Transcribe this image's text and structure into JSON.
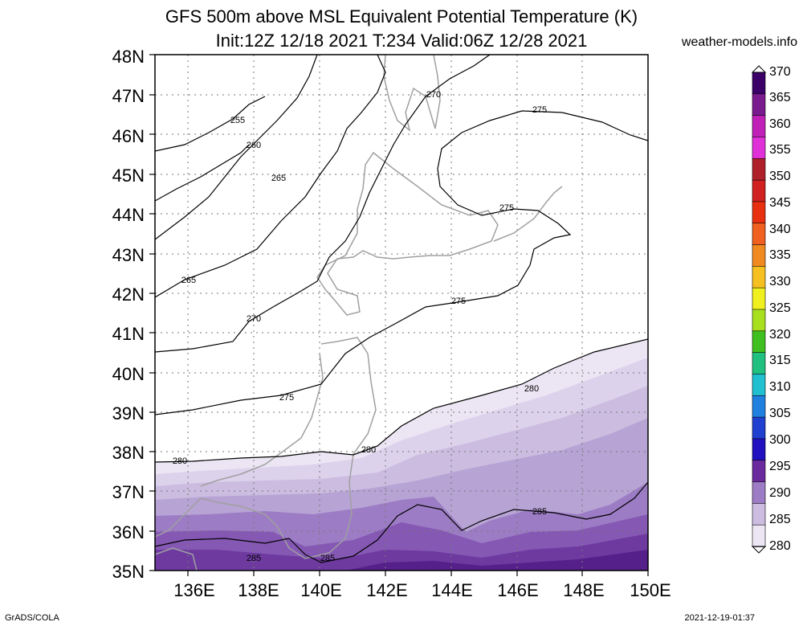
{
  "header": {
    "title_line1": "GFS 500m above MSL Equivalent Potential Temperature (K)",
    "title_line2": "Init:12Z 12/18 2021 T:234 Valid:06Z 12/28 2021",
    "site": "weather-models.info"
  },
  "axes": {
    "lat_labels": [
      "48N",
      "47N",
      "46N",
      "45N",
      "44N",
      "43N",
      "42N",
      "41N",
      "40N",
      "39N",
      "38N",
      "37N",
      "36N",
      "35N"
    ],
    "lon_labels": [
      "136E",
      "138E",
      "140E",
      "142E",
      "144E",
      "146E",
      "148E",
      "150E"
    ]
  },
  "contour_labels": [
    "255",
    "260",
    "265",
    "265",
    "270",
    "270",
    "275",
    "275",
    "275",
    "275",
    "280",
    "280",
    "280",
    "285",
    "285",
    "285"
  ],
  "colorbar": {
    "labels": [
      "370",
      "365",
      "360",
      "355",
      "350",
      "345",
      "340",
      "335",
      "330",
      "325",
      "320",
      "315",
      "310",
      "305",
      "300",
      "295",
      "290",
      "285",
      "280"
    ],
    "colors": [
      "#3a0068",
      "#7a1a8f",
      "#c020b8",
      "#e030d8",
      "#b0202a",
      "#d02020",
      "#e83010",
      "#f06020",
      "#f08a20",
      "#f5c020",
      "#f0f020",
      "#a8e020",
      "#40c020",
      "#20c080",
      "#20c0d0",
      "#2080e0",
      "#2040d0",
      "#2010c0",
      "#6a2a9e",
      "#9c7cc4",
      "#cbbce0",
      "#ece6f4"
    ]
  },
  "footer": {
    "left": "GrADS/COLA",
    "right": "2021-12-19-01:37"
  }
}
